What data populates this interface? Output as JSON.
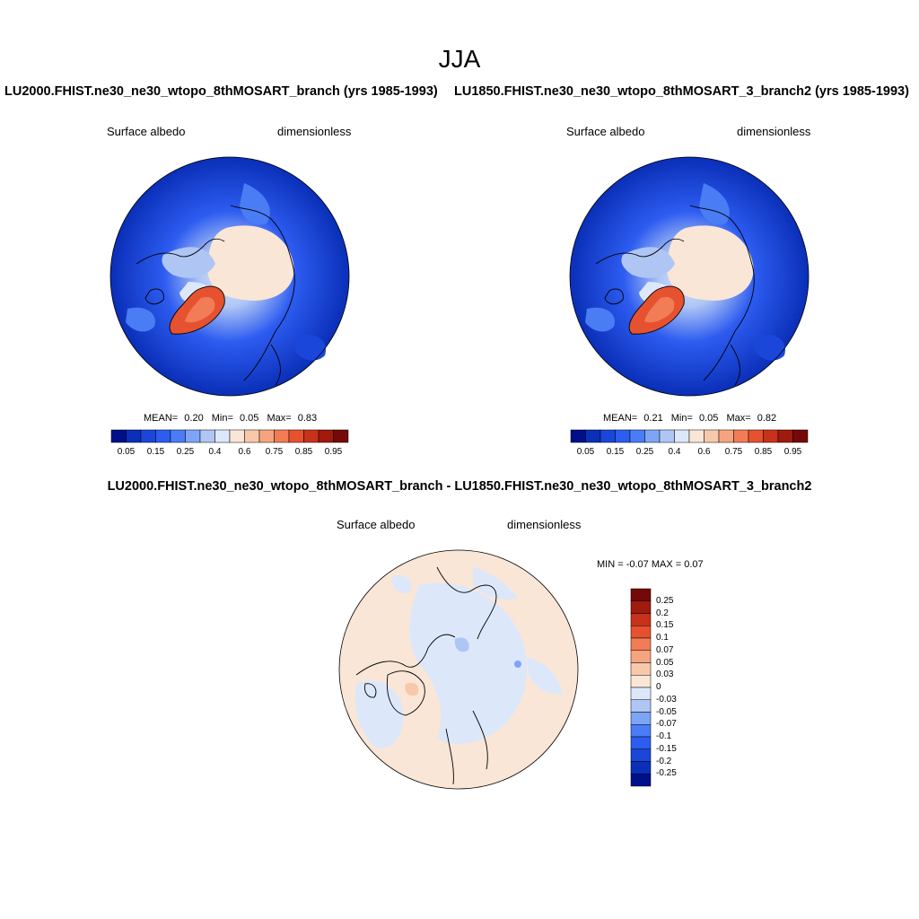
{
  "season": "JJA",
  "panel_left": {
    "case_title": "LU2000.FHIST.ne30_ne30_wtopo_8thMOSART_branch (yrs 1985-1993)",
    "variable": "Surface albedo",
    "units": "dimensionless",
    "mean_label": "MEAN=",
    "mean": "0.20",
    "min_label": "Min=",
    "min": "0.05",
    "max_label": "Max=",
    "max": "0.83"
  },
  "panel_right": {
    "case_title": "LU1850.FHIST.ne30_ne30_wtopo_8thMOSART_3_branch2 (yrs 1985-1993)",
    "variable": "Surface albedo",
    "units": "dimensionless",
    "mean_label": "MEAN=",
    "mean": "0.21",
    "min_label": "Min=",
    "min": "0.05",
    "max_label": "Max=",
    "max": "0.82"
  },
  "panel_diff": {
    "title": "LU2000.FHIST.ne30_ne30_wtopo_8thMOSART_branch - LU1850.FHIST.ne30_ne30_wtopo_8thMOSART_3_branch2",
    "variable": "Surface albedo",
    "units": "dimensionless",
    "minmax_text": "MIN =  -0.07 MAX =   0.07"
  },
  "colorbar_main": {
    "colors": [
      "#000f8a",
      "#0a2fb8",
      "#1a46d9",
      "#2d5cf0",
      "#4a7cf5",
      "#7ea4f5",
      "#afc6f5",
      "#dce8fa",
      "#fae6d6",
      "#f8c8ab",
      "#f6a47f",
      "#f27c55",
      "#e6522f",
      "#c8321a",
      "#a01a0e",
      "#750808"
    ],
    "ticks": [
      "0.05",
      "0.15",
      "0.25",
      "0.4",
      "0.6",
      "0.75",
      "0.85",
      "0.95"
    ]
  },
  "colorbar_diff": {
    "colors_top_to_bottom": [
      "#750808",
      "#a01a0e",
      "#c8321a",
      "#e6522f",
      "#f27c55",
      "#f6a47f",
      "#f8c8ab",
      "#fae6d6",
      "#dce8fa",
      "#afc6f5",
      "#7ea4f5",
      "#4a7cf5",
      "#2d5cf0",
      "#1a46d9",
      "#0a2fb8",
      "#000f8a"
    ],
    "ticks": [
      "0.25",
      "0.2",
      "0.15",
      "0.1",
      "0.07",
      "0.05",
      "0.03",
      "0",
      "-0.03",
      "-0.05",
      "-0.07",
      "-0.1",
      "-0.15",
      "-0.2",
      "-0.25"
    ]
  }
}
